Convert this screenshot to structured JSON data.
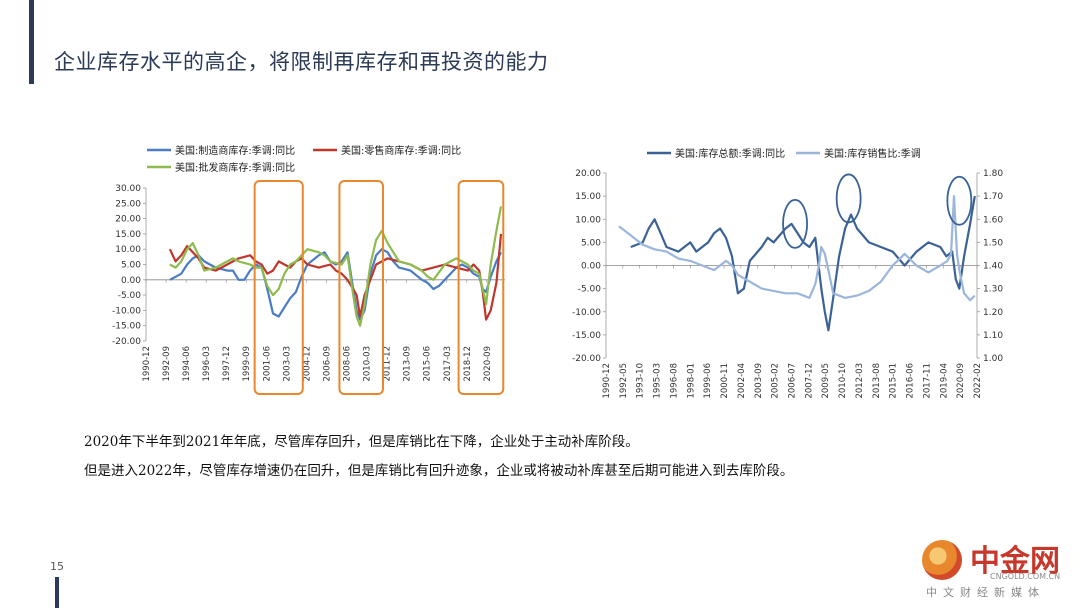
{
  "page": {
    "title": "企业库存水平的高企，将限制再库存和再投资的能力",
    "page_number": "15",
    "paragraphs": [
      "2020年下半年到2021年年底，尽管库存回升，但是库销比在下降，企业处于主动补库阶段。",
      "但是进入2022年，尽管库存增速仍在回升，但是库销比有回升迹象，企业或将被动补库甚至后期可能进入到去库阶段。"
    ],
    "accent_color": "#2e3a5c"
  },
  "logo": {
    "main": "中金网",
    "url": "CNGOLD.COM.CN",
    "tagline": "中文财经新媒体"
  },
  "chart_data": [
    {
      "type": "line",
      "title": "",
      "legend_placement": "top",
      "ylim": [
        -20,
        30
      ],
      "yticks": [
        "30.00",
        "25.00",
        "20.00",
        "15.00",
        "10.00",
        "5.00",
        "0.00",
        "-5.00",
        "-10.00",
        "-15.00",
        "-20.00"
      ],
      "xlim": [
        1990.917,
        2022.25
      ],
      "xticks": [
        "1990-12",
        "1992-09",
        "1994-06",
        "1996-03",
        "1997-12",
        "1999-09",
        "2001-06",
        "2003-03",
        "2004-12",
        "2006-09",
        "2008-06",
        "2010-03",
        "2011-12",
        "2013-09",
        "2015-06",
        "2017-03",
        "2018-12",
        "2020-09"
      ],
      "highlight_boxes": [
        [
          2000.4,
          2004.6
        ],
        [
          2007.8,
          2011.6
        ],
        [
          2018.2,
          2022.1
        ]
      ],
      "highlight_color": "#e8872e",
      "series": [
        {
          "name": "美国:制造商库存:季调:同比",
          "color": "#4a7cc6",
          "x": [
            1993.0,
            1994.0,
            1994.5,
            1995.0,
            1995.5,
            1996.0,
            1997.0,
            1998.0,
            1998.5,
            1999.0,
            1999.5,
            2000.0,
            2000.5,
            2001.0,
            2001.3,
            2001.7,
            2002.0,
            2002.5,
            2003.0,
            2003.5,
            2004.0,
            2004.5,
            2005.0,
            2006.0,
            2006.5,
            2007.0,
            2007.5,
            2008.0,
            2008.5,
            2009.0,
            2009.3,
            2009.6,
            2010.0,
            2010.5,
            2011.0,
            2011.5,
            2012.0,
            2012.5,
            2013.0,
            2014.0,
            2015.0,
            2015.5,
            2016.0,
            2016.5,
            2017.0,
            2018.0,
            2018.5,
            2019.0,
            2019.5,
            2020.0,
            2020.3,
            2020.6,
            2021.0,
            2021.5,
            2021.9
          ],
          "y": [
            0,
            2,
            5,
            7,
            8,
            6,
            4,
            3,
            3,
            0,
            0,
            3,
            5,
            4,
            0,
            -6,
            -11,
            -12,
            -9,
            -6,
            -4,
            1,
            5,
            8,
            9,
            6,
            5,
            6,
            9,
            -3,
            -10,
            -13,
            -10,
            2,
            8,
            10,
            9,
            6,
            4,
            3,
            0,
            -1,
            -3,
            -2,
            0,
            4,
            5,
            4,
            2,
            1,
            -3,
            -4,
            1,
            6,
            9
          ]
        },
        {
          "name": "美国:零售商库存:季调:同比",
          "color": "#c0362c",
          "x": [
            1993.0,
            1993.5,
            1994.0,
            1994.5,
            1995.0,
            1995.5,
            1996.0,
            1997.0,
            1998.0,
            1999.0,
            2000.0,
            2000.5,
            2001.0,
            2001.5,
            2002.0,
            2002.5,
            2003.0,
            2003.5,
            2004.0,
            2004.5,
            2005.0,
            2006.0,
            2007.0,
            2007.5,
            2008.0,
            2008.5,
            2009.0,
            2009.3,
            2009.6,
            2010.0,
            2011.0,
            2012.0,
            2013.0,
            2014.0,
            2015.0,
            2016.0,
            2017.0,
            2018.0,
            2019.0,
            2019.5,
            2020.0,
            2020.3,
            2020.6,
            2021.0,
            2021.5,
            2021.9
          ],
          "y": [
            10,
            6,
            8,
            11,
            9,
            7,
            4,
            3,
            5,
            7,
            8,
            6,
            5,
            2,
            3,
            6,
            5,
            4,
            6,
            7,
            5,
            4,
            5,
            3,
            2,
            0,
            -3,
            -5,
            -12,
            -5,
            5,
            7,
            6,
            5,
            3,
            4,
            5,
            4,
            3,
            5,
            3,
            -4,
            -13,
            -10,
            -1,
            15
          ]
        },
        {
          "name": "美国:批发商库存:季调:同比",
          "color": "#8dbb4c",
          "x": [
            1993.0,
            1993.5,
            1994.0,
            1994.5,
            1995.0,
            1995.5,
            1996.0,
            1997.0,
            1998.0,
            1998.5,
            1999.0,
            2000.0,
            2000.5,
            2001.0,
            2001.5,
            2002.0,
            2002.5,
            2003.0,
            2003.5,
            2004.0,
            2004.5,
            2005.0,
            2006.0,
            2006.5,
            2007.0,
            2008.0,
            2008.5,
            2009.0,
            2009.3,
            2009.6,
            2010.0,
            2010.5,
            2011.0,
            2011.5,
            2012.0,
            2013.0,
            2014.0,
            2015.0,
            2015.5,
            2016.0,
            2017.0,
            2018.0,
            2019.0,
            2019.5,
            2020.0,
            2020.3,
            2020.6,
            2021.0,
            2021.5,
            2021.9
          ],
          "y": [
            5,
            4,
            6,
            10,
            12,
            8,
            3,
            4,
            6,
            7,
            6,
            5,
            4,
            4,
            -2,
            -5,
            -3,
            2,
            5,
            6,
            8,
            10,
            9,
            8,
            6,
            5,
            8,
            -5,
            -12,
            -15,
            -8,
            5,
            13,
            16,
            12,
            6,
            5,
            3,
            1,
            0,
            5,
            7,
            5,
            3,
            2,
            -3,
            -8,
            5,
            16,
            24
          ]
        }
      ]
    },
    {
      "type": "line",
      "title": "",
      "legend_placement": "top",
      "ylim": [
        -20,
        20
      ],
      "y2lim": [
        1.0,
        1.8
      ],
      "yticks": [
        "20.00",
        "15.00",
        "10.00",
        "5.00",
        "0.00",
        "-5.00",
        "-10.00",
        "-15.00",
        "-20.00"
      ],
      "y2ticks": [
        "1.80",
        "1.70",
        "1.60",
        "1.50",
        "1.40",
        "1.30",
        "1.20",
        "1.10",
        "1.00"
      ],
      "xlim": [
        1990.917,
        2022.083
      ],
      "xticks": [
        "1990-12",
        "1992-05",
        "1993-10",
        "1995-03",
        "1996-08",
        "1998-01",
        "1999-06",
        "2000-11",
        "2002-04",
        "2003-09",
        "2005-02",
        "2006-07",
        "2007-12",
        "2009-05",
        "2010-10",
        "2012-03",
        "2013-08",
        "2015-01",
        "2016-06",
        "2017-11",
        "2019-04",
        "2020-09",
        "2022-02"
      ],
      "highlight_circles": [
        [
          2006.8,
          9.0
        ],
        [
          2011.3,
          14.5
        ],
        [
          2020.6,
          14.0
        ]
      ],
      "highlight_color": "#3a6296",
      "series": [
        {
          "name": "美国:库存总额:季调:同比",
          "axis": "left",
          "color": "#3a6296",
          "x": [
            1993.0,
            1994.0,
            1994.5,
            1995.0,
            1995.5,
            1996.0,
            1997.0,
            1998.0,
            1998.5,
            1999.0,
            1999.5,
            2000.0,
            2000.5,
            2001.0,
            2001.5,
            2002.0,
            2002.5,
            2003.0,
            2004.0,
            2004.5,
            2005.0,
            2006.0,
            2006.5,
            2007.0,
            2007.5,
            2008.0,
            2008.5,
            2009.0,
            2009.3,
            2009.6,
            2010.0,
            2010.5,
            2011.0,
            2011.5,
            2012.0,
            2013.0,
            2014.0,
            2015.0,
            2016.0,
            2017.0,
            2018.0,
            2019.0,
            2019.5,
            2020.0,
            2020.3,
            2020.6,
            2021.0,
            2021.5,
            2021.9
          ],
          "y": [
            4,
            5,
            8,
            10,
            7,
            4,
            3,
            5,
            3,
            4,
            5,
            7,
            8,
            6,
            2,
            -6,
            -5,
            1,
            4,
            6,
            5,
            8,
            9,
            7,
            5,
            4,
            6,
            -5,
            -10,
            -14,
            -7,
            2,
            8,
            11,
            8,
            5,
            4,
            3,
            0,
            3,
            5,
            4,
            2,
            3,
            -3,
            -5,
            2,
            9,
            15
          ]
        },
        {
          "name": "美国:库存销售比:季调",
          "axis": "right",
          "color": "#9bb5db",
          "x": [
            1992.0,
            1993.0,
            1994.0,
            1995.0,
            1996.0,
            1997.0,
            1998.0,
            1999.0,
            2000.0,
            2001.0,
            2001.5,
            2002.0,
            2003.0,
            2004.0,
            2005.0,
            2006.0,
            2007.0,
            2008.0,
            2008.5,
            2008.8,
            2009.0,
            2009.3,
            2009.6,
            2010.0,
            2011.0,
            2012.0,
            2013.0,
            2014.0,
            2015.0,
            2016.0,
            2017.0,
            2018.0,
            2019.0,
            2019.6,
            2019.9,
            2020.15,
            2020.25,
            2020.4,
            2020.6,
            2021.0,
            2021.5,
            2021.9
          ],
          "y": [
            1.57,
            1.53,
            1.49,
            1.47,
            1.46,
            1.43,
            1.42,
            1.4,
            1.38,
            1.42,
            1.4,
            1.36,
            1.33,
            1.3,
            1.29,
            1.28,
            1.28,
            1.26,
            1.32,
            1.4,
            1.48,
            1.45,
            1.38,
            1.28,
            1.26,
            1.27,
            1.29,
            1.33,
            1.4,
            1.45,
            1.4,
            1.37,
            1.4,
            1.42,
            1.45,
            1.7,
            1.6,
            1.45,
            1.38,
            1.28,
            1.25,
            1.27
          ]
        }
      ]
    }
  ]
}
